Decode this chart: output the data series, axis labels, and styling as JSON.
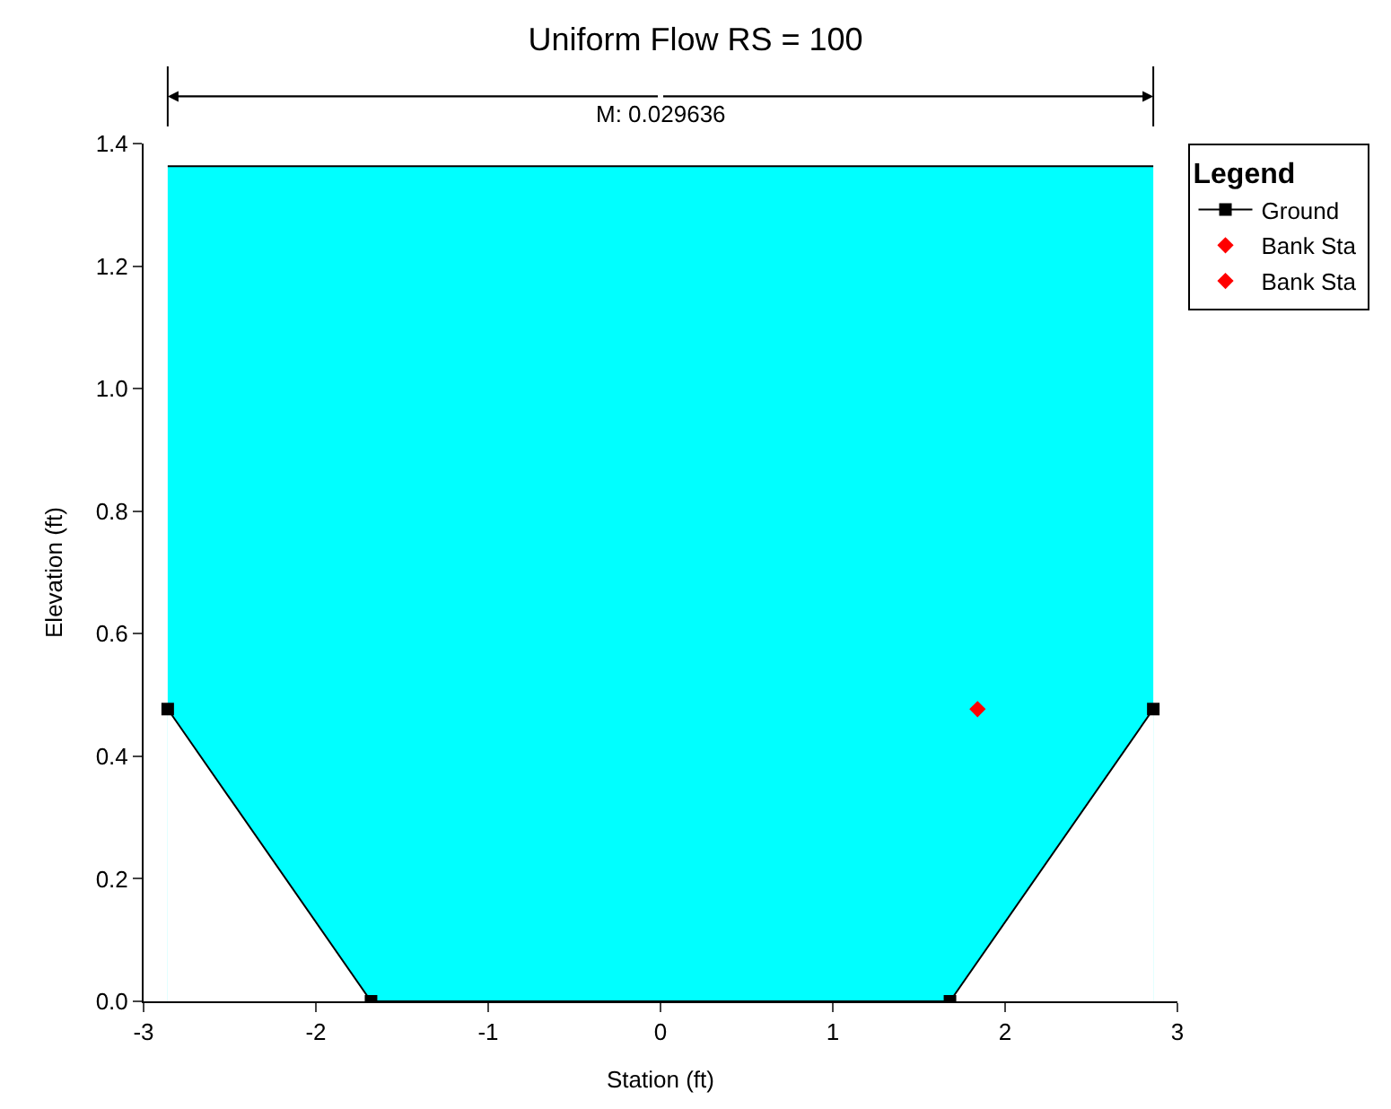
{
  "chart_data": {
    "type": "line",
    "title": "Uniform Flow RS = 100",
    "xlabel": "Station (ft)",
    "ylabel": "Elevation (ft)",
    "legend_title": "Legend",
    "legend": "top right",
    "xlim": [
      -3,
      3
    ],
    "xticks": [
      -3,
      -2,
      -1,
      0,
      1,
      2,
      3
    ],
    "ylim": [
      0,
      1.4
    ],
    "yticks": [
      {
        "value": 0,
        "label": "0.0"
      },
      {
        "value": 0.2,
        "label": "0.2"
      },
      {
        "value": 0.4,
        "label": "0.4"
      },
      {
        "value": 0.6,
        "label": "0.6"
      },
      {
        "value": 0.8,
        "label": "0.8"
      },
      {
        "value": 1.0,
        "label": "1.0"
      },
      {
        "value": 1.2,
        "label": "1.2"
      },
      {
        "value": 1.4,
        "label": "1.4"
      }
    ],
    "annotations": [
      "M: 0.029636"
    ],
    "series": [
      {
        "name": "Ground",
        "color": "#000000",
        "marker": "square",
        "x": [
          -2.86,
          -1.68,
          1.68,
          2.86
        ],
        "values": [
          0.477,
          0,
          0,
          0.477
        ]
      },
      {
        "type": "area",
        "color": "#00ffff",
        "x": [
          -2.86,
          2.86
        ],
        "values": [
          1.363,
          1.363
        ]
      },
      {
        "name": "Bank Sta",
        "type": "scatter",
        "color": "#ff0000",
        "marker": "diamond",
        "x": [
          1.84
        ],
        "values": [
          0.477
        ]
      },
      {
        "name": "Bank Sta",
        "type": "scatter",
        "color": "#ff0000",
        "marker": "diamond",
        "x": [
          null
        ],
        "values": [
          null
        ]
      }
    ]
  }
}
